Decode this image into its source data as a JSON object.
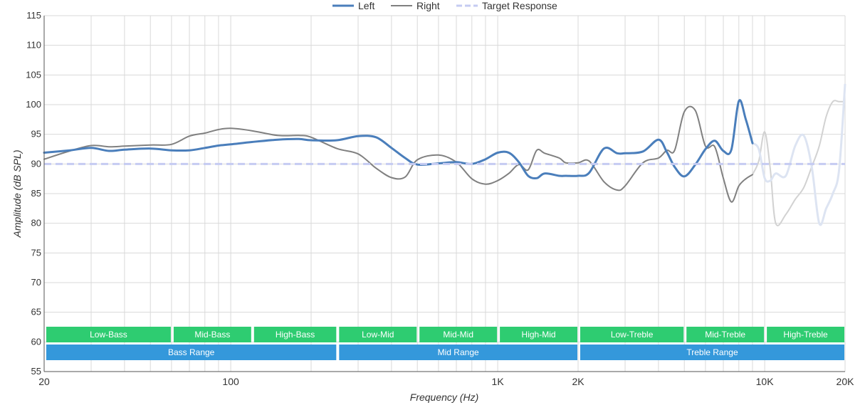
{
  "chart_data": {
    "type": "line",
    "xlabel": "Frequency (Hz)",
    "ylabel": "Amplitude (dB SPL)",
    "xscale": "log",
    "xlim": [
      20,
      20000
    ],
    "ylim": [
      55,
      115
    ],
    "x_tick_labels": [
      {
        "value": 20,
        "label": "20"
      },
      {
        "value": 100,
        "label": "100"
      },
      {
        "value": 1000,
        "label": "1K"
      },
      {
        "value": 2000,
        "label": "2K"
      },
      {
        "value": 10000,
        "label": "10K"
      },
      {
        "value": 20000,
        "label": "20K"
      }
    ],
    "y_ticks": [
      55,
      60,
      65,
      70,
      75,
      80,
      85,
      90,
      95,
      100,
      105,
      110,
      115
    ],
    "grid": true,
    "legend": {
      "placement": "top-center",
      "entries": [
        {
          "label": "Left",
          "color": "#4a7ebb",
          "style": "solid"
        },
        {
          "label": "Right",
          "color": "#808080",
          "style": "solid"
        },
        {
          "label": "Target Response",
          "color": "#c5cbf2",
          "style": "dashed"
        }
      ]
    },
    "series": [
      {
        "name": "Left",
        "color": "#4a7ebb",
        "faded_after": 9000,
        "x": [
          20,
          25,
          30,
          35,
          40,
          50,
          60,
          70,
          80,
          90,
          100,
          120,
          150,
          180,
          200,
          250,
          300,
          350,
          400,
          450,
          500,
          600,
          700,
          800,
          900,
          1000,
          1100,
          1200,
          1300,
          1400,
          1500,
          1700,
          1800,
          2000,
          2200,
          2500,
          2800,
          3000,
          3500,
          4000,
          4300,
          4600,
          5000,
          5500,
          6000,
          6500,
          7000,
          7500,
          8000,
          8500,
          9000,
          9500,
          10000,
          10500,
          11000,
          12000,
          13000,
          14000,
          15000,
          16000,
          17000,
          18000,
          19000,
          20000
        ],
        "y": [
          91.9,
          92.3,
          92.7,
          92.2,
          92.4,
          92.6,
          92.3,
          92.3,
          92.7,
          93.1,
          93.3,
          93.7,
          94.1,
          94.2,
          94.0,
          94.0,
          94.7,
          94.5,
          92.7,
          91.0,
          89.9,
          90.1,
          90.3,
          90.0,
          90.8,
          91.9,
          91.9,
          90.3,
          88.0,
          87.6,
          88.4,
          88.0,
          88.0,
          88.0,
          88.5,
          92.6,
          91.8,
          91.8,
          92.1,
          94.1,
          92.0,
          89.5,
          87.9,
          89.9,
          92.5,
          93.9,
          92.2,
          92.4,
          100.6,
          97.5,
          93.5,
          92.5,
          87.6,
          87.2,
          88.4,
          88.0,
          93.0,
          94.8,
          89.6,
          80.0,
          82.5,
          85.0,
          89.0,
          103.5
        ]
      },
      {
        "name": "Right",
        "color": "#808080",
        "faded_after": 9000,
        "x": [
          20,
          25,
          30,
          35,
          40,
          50,
          60,
          70,
          80,
          90,
          100,
          120,
          150,
          180,
          200,
          250,
          300,
          350,
          400,
          450,
          500,
          600,
          700,
          800,
          900,
          1000,
          1100,
          1200,
          1300,
          1400,
          1500,
          1700,
          1800,
          2000,
          2200,
          2500,
          2800,
          3000,
          3500,
          4000,
          4300,
          4600,
          5000,
          5500,
          6000,
          6500,
          7000,
          7500,
          8000,
          8500,
          9000,
          9500,
          10000,
          10500,
          11000,
          12000,
          13000,
          14000,
          15000,
          16000,
          17000,
          18000,
          19000,
          20000
        ],
        "y": [
          90.8,
          92.2,
          93.1,
          92.9,
          93.0,
          93.2,
          93.3,
          94.7,
          95.2,
          95.8,
          96.0,
          95.6,
          94.8,
          94.8,
          94.5,
          92.6,
          91.7,
          89.3,
          87.7,
          87.8,
          90.7,
          91.5,
          90.3,
          87.5,
          86.6,
          87.2,
          88.4,
          89.9,
          89.0,
          92.3,
          91.8,
          91.0,
          90.2,
          90.2,
          90.5,
          87.0,
          85.6,
          86.3,
          90.2,
          91.0,
          92.3,
          92.3,
          98.8,
          99.0,
          93.0,
          92.9,
          87.6,
          83.6,
          86.3,
          87.5,
          88.2,
          90.5,
          95.4,
          89.0,
          80.0,
          81.5,
          84.0,
          86.0,
          89.5,
          93.0,
          98.0,
          100.5,
          100.5,
          100.5
        ]
      },
      {
        "name": "Target Response",
        "color": "#c5cbf2",
        "dashed": true,
        "x": [
          20,
          20000
        ],
        "y": [
          90,
          90
        ]
      }
    ],
    "bands": [
      {
        "label": "Low-Bass",
        "from": 20,
        "to": 60,
        "row": 1
      },
      {
        "label": "Mid-Bass",
        "from": 60,
        "to": 120,
        "row": 1
      },
      {
        "label": "High-Bass",
        "from": 120,
        "to": 250,
        "row": 1
      },
      {
        "label": "Low-Mid",
        "from": 250,
        "to": 500,
        "row": 1
      },
      {
        "label": "Mid-Mid",
        "from": 500,
        "to": 1000,
        "row": 1
      },
      {
        "label": "High-Mid",
        "from": 1000,
        "to": 2000,
        "row": 1
      },
      {
        "label": "Low-Treble",
        "from": 2000,
        "to": 5000,
        "row": 1
      },
      {
        "label": "Mid-Treble",
        "from": 5000,
        "to": 10000,
        "row": 1
      },
      {
        "label": "High-Treble",
        "from": 10000,
        "to": 20000,
        "row": 1
      },
      {
        "label": "Bass Range",
        "from": 20,
        "to": 250,
        "row": 2
      },
      {
        "label": "Mid Range",
        "from": 250,
        "to": 2000,
        "row": 2
      },
      {
        "label": "Treble Range",
        "from": 2000,
        "to": 20000,
        "row": 2
      }
    ],
    "band_colors": {
      "row1": "#2ecc71",
      "row2": "#3498db"
    }
  }
}
